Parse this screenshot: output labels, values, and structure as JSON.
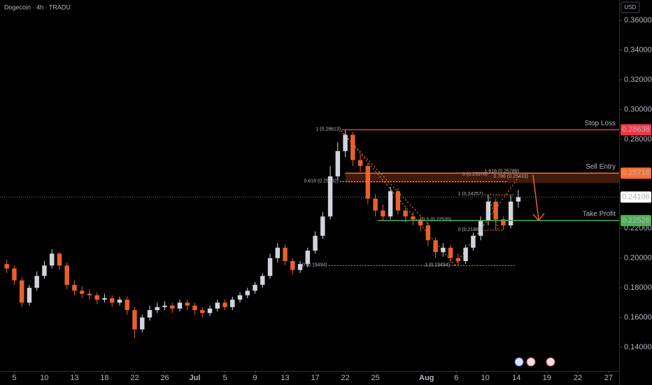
{
  "chart_data": {
    "type": "candlestick",
    "title": "Dogecoin · 4h · TRADU",
    "currency": "USD",
    "up_color": "#d1d4dc",
    "down_color": "#e8602c",
    "x": [
      3,
      4,
      5,
      6,
      7,
      8,
      9,
      10,
      11,
      12,
      13,
      14,
      15,
      16,
      17,
      18,
      19,
      20,
      21,
      22,
      23,
      24,
      25,
      26,
      27,
      28,
      29,
      30,
      31,
      32,
      33,
      34,
      35,
      36,
      37,
      38,
      39,
      40,
      41,
      42,
      43,
      44,
      45,
      46,
      47,
      48,
      49,
      50,
      51,
      52,
      53,
      54,
      55,
      56,
      57,
      58,
      59,
      60,
      61,
      62,
      63,
      64,
      65,
      66,
      67,
      68,
      69,
      70,
      71
    ],
    "open": [
      0.196,
      0.193,
      0.185,
      0.17,
      0.18,
      0.188,
      0.195,
      0.203,
      0.195,
      0.182,
      0.178,
      0.176,
      0.175,
      0.172,
      0.173,
      0.17,
      0.172,
      0.165,
      0.152,
      0.16,
      0.165,
      0.167,
      0.168,
      0.166,
      0.17,
      0.168,
      0.165,
      0.163,
      0.166,
      0.17,
      0.167,
      0.172,
      0.175,
      0.178,
      0.182,
      0.188,
      0.2,
      0.207,
      0.198,
      0.192,
      0.196,
      0.205,
      0.215,
      0.228,
      0.255,
      0.272,
      0.283,
      0.266,
      0.262,
      0.24,
      0.232,
      0.228,
      0.245,
      0.232,
      0.228,
      0.226,
      0.222,
      0.212,
      0.204,
      0.207,
      0.2,
      0.198,
      0.207,
      0.215,
      0.225,
      0.238,
      0.226,
      0.222,
      0.238
    ],
    "high": [
      0.199,
      0.195,
      0.187,
      0.182,
      0.191,
      0.198,
      0.206,
      0.204,
      0.197,
      0.185,
      0.181,
      0.179,
      0.177,
      0.176,
      0.175,
      0.174,
      0.174,
      0.167,
      0.162,
      0.168,
      0.17,
      0.171,
      0.17,
      0.172,
      0.172,
      0.17,
      0.167,
      0.168,
      0.172,
      0.172,
      0.174,
      0.177,
      0.18,
      0.184,
      0.19,
      0.203,
      0.21,
      0.209,
      0.2,
      0.198,
      0.207,
      0.218,
      0.231,
      0.262,
      0.278,
      0.28613,
      0.285,
      0.27,
      0.264,
      0.243,
      0.236,
      0.248,
      0.247,
      0.234,
      0.231,
      0.228,
      0.224,
      0.214,
      0.21,
      0.209,
      0.203,
      0.209,
      0.217,
      0.228,
      0.24257,
      0.24,
      0.228,
      0.2424,
      0.2458
    ],
    "low": [
      0.19,
      0.182,
      0.167,
      0.168,
      0.178,
      0.186,
      0.193,
      0.192,
      0.179,
      0.175,
      0.173,
      0.172,
      0.169,
      0.17,
      0.167,
      0.168,
      0.162,
      0.146,
      0.15,
      0.158,
      0.163,
      0.165,
      0.163,
      0.164,
      0.165,
      0.162,
      0.16,
      0.161,
      0.164,
      0.165,
      0.165,
      0.17,
      0.173,
      0.176,
      0.18,
      0.186,
      0.197,
      0.195,
      0.189,
      0.19,
      0.194,
      0.203,
      0.213,
      0.226,
      0.252,
      0.268,
      0.262,
      0.258,
      0.236,
      0.228,
      0.225,
      0.226,
      0.229,
      0.224,
      0.222,
      0.218,
      0.208,
      0.2,
      0.201,
      0.197,
      0.19494,
      0.196,
      0.205,
      0.212,
      0.222,
      0.219,
      0.219,
      0.22,
      0.234
    ],
    "close": [
      0.193,
      0.185,
      0.17,
      0.18,
      0.188,
      0.195,
      0.203,
      0.195,
      0.182,
      0.178,
      0.176,
      0.175,
      0.172,
      0.173,
      0.17,
      0.172,
      0.165,
      0.152,
      0.16,
      0.165,
      0.167,
      0.168,
      0.166,
      0.17,
      0.168,
      0.165,
      0.163,
      0.166,
      0.17,
      0.167,
      0.172,
      0.175,
      0.178,
      0.182,
      0.188,
      0.2,
      0.207,
      0.198,
      0.192,
      0.196,
      0.205,
      0.215,
      0.228,
      0.255,
      0.272,
      0.283,
      0.266,
      0.262,
      0.24,
      0.232,
      0.228,
      0.245,
      0.232,
      0.228,
      0.226,
      0.222,
      0.212,
      0.204,
      0.207,
      0.2,
      0.198,
      0.207,
      0.215,
      0.225,
      0.238,
      0.226,
      0.222,
      0.238,
      0.241
    ],
    "xlim": [
      2.1,
      84.4
    ],
    "ylim": [
      0.124,
      0.3737
    ],
    "xticks": [
      {
        "value": 4,
        "label": "5"
      },
      {
        "value": 8,
        "label": "10"
      },
      {
        "value": 12,
        "label": "13"
      },
      {
        "value": 16,
        "label": "18"
      },
      {
        "value": 20,
        "label": "22"
      },
      {
        "value": 24,
        "label": "26"
      },
      {
        "value": 28,
        "label": "Jul"
      },
      {
        "value": 32,
        "label": "5"
      },
      {
        "value": 36,
        "label": "9"
      },
      {
        "value": 40,
        "label": "13"
      },
      {
        "value": 44,
        "label": "17"
      },
      {
        "value": 48,
        "label": "22"
      },
      {
        "value": 52,
        "label": "25"
      },
      {
        "value": 58.8,
        "label": "Aug"
      },
      {
        "value": 62.75,
        "label": "6"
      },
      {
        "value": 66.6,
        "label": "10"
      },
      {
        "value": 70.75,
        "label": "14"
      },
      {
        "value": 74.8,
        "label": "19"
      },
      {
        "value": 78.9,
        "label": "22"
      },
      {
        "value": 83,
        "label": "27"
      }
    ],
    "yticks": [
      {
        "value": 0.14,
        "label": "0.14000"
      },
      {
        "value": 0.16,
        "label": "0.16000"
      },
      {
        "value": 0.18,
        "label": "0.18000"
      },
      {
        "value": 0.2,
        "label": "0.20000"
      },
      {
        "value": 0.22,
        "label": "0.22000"
      },
      {
        "value": 0.28,
        "label": "0.28000"
      },
      {
        "value": 0.3,
        "label": "0.30000"
      },
      {
        "value": 0.32,
        "label": "0.32000"
      },
      {
        "value": 0.34,
        "label": "0.34000"
      },
      {
        "value": 0.36,
        "label": "0.36000"
      }
    ],
    "last_price": 0.24106,
    "levels": [
      {
        "name": "Stop Loss",
        "value": 0.28638,
        "color": "#f23645",
        "from": 47.5
      },
      {
        "name": "Sell Entry",
        "value": 0.25718,
        "color": "#ff6d2e",
        "from": 48.0
      },
      {
        "name": "Take Profit",
        "value": 0.22526,
        "color": "#4caf50",
        "from": 52.3
      }
    ],
    "annotations": [
      {
        "text": "1 (0.28613)",
        "x": 47.4,
        "y": 0.28613,
        "color": "#ff9800"
      },
      {
        "text": "0.618 (0.25142)",
        "x": 47.1,
        "y": 0.25142,
        "color": "#f5d142",
        "x2": 69.5
      },
      {
        "text": "0 (0.19494)",
        "x": 45.6,
        "y": 0.19494,
        "color": "#ff9800",
        "x2": 70.7
      },
      {
        "text": "1 (0.24257)",
        "x": 66.3,
        "y": 0.24257,
        "color": "#ff9800",
        "x2": 70.5
      },
      {
        "text": "0.5 (0.22535)",
        "x": 62.1,
        "y": 0.22535,
        "color": "#ff9800",
        "x2": 69.4
      },
      {
        "text": "0 (0.21868)",
        "x": 66.3,
        "y": 0.21868,
        "color": "#ff9800",
        "x2": 69.0
      },
      {
        "text": "1 (0.19494)",
        "x": 61.9,
        "y": 0.19494,
        "color": "#ff9800"
      },
      {
        "text": "0 (0.25576)",
        "x": 66.9,
        "y": 0.25576,
        "color": "#ff9800"
      },
      {
        "text": "0.786 (0.25433)",
        "x": 72.3,
        "y": 0.25433,
        "color": "#ff9800"
      },
      {
        "text": "1.618 (0.25789)",
        "x": 71.1,
        "y": 0.25789,
        "color": "#ff9800"
      }
    ]
  }
}
